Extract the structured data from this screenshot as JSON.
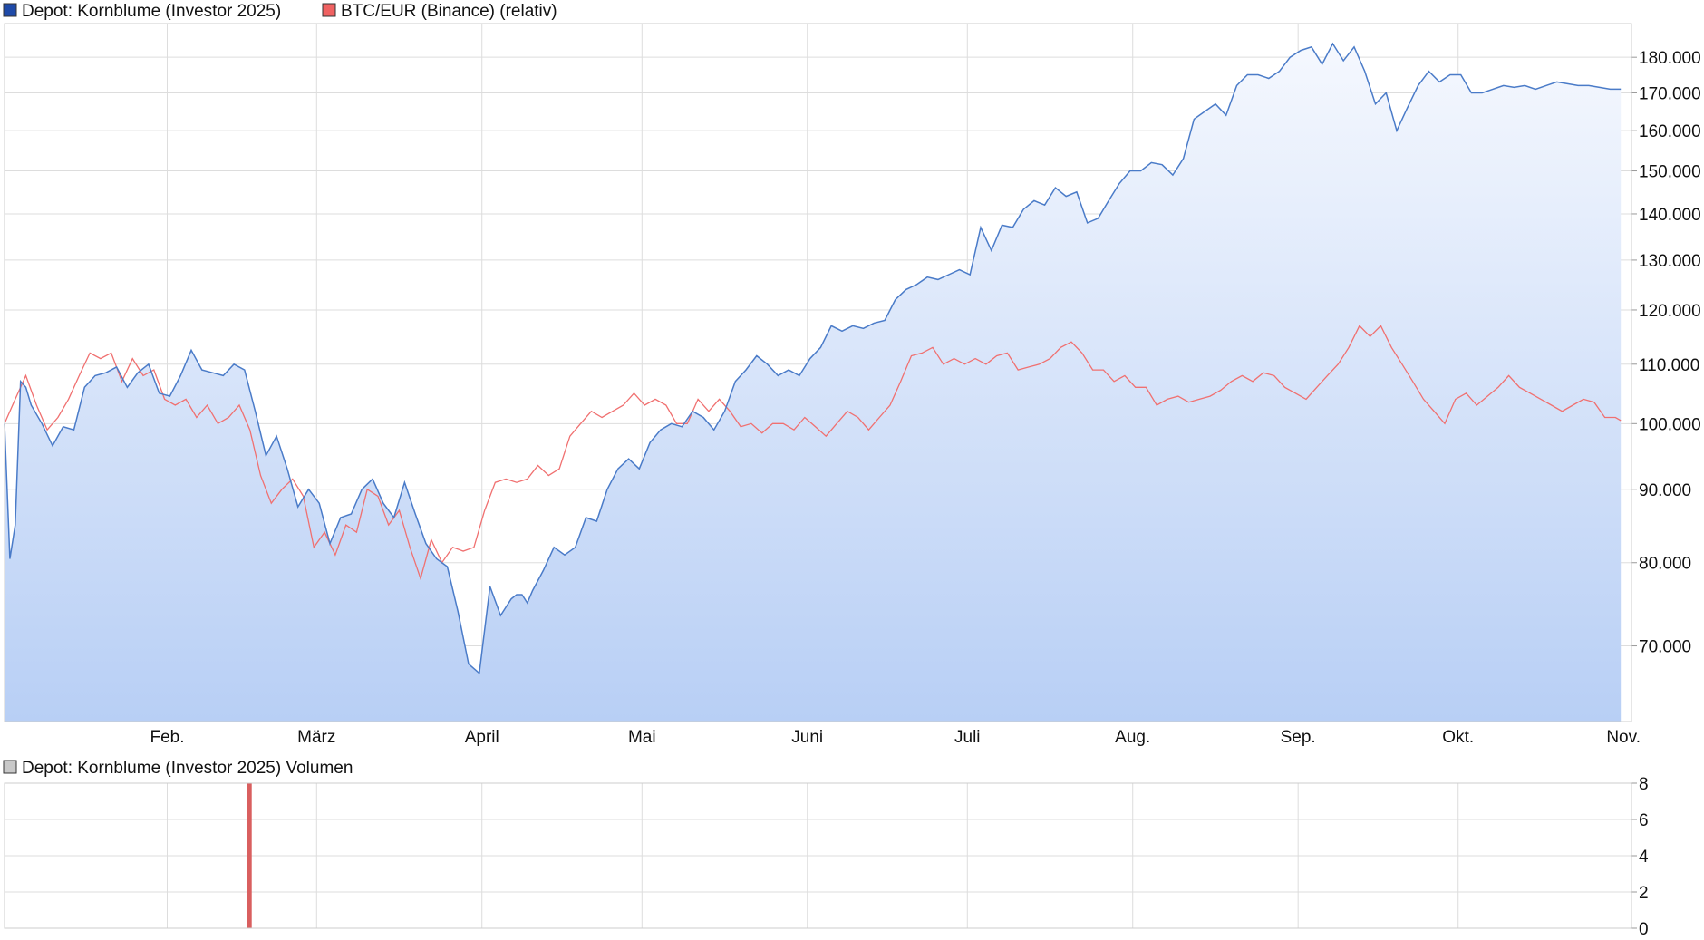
{
  "legend": {
    "series_depot": "Depot: Kornblume (Investor 2025)",
    "series_btc": "BTC/EUR (Binance) (relativ)",
    "volume_title": "Depot: Kornblume (Investor 2025) Volumen"
  },
  "colors": {
    "depot_line": "#4a7bc8",
    "depot_swatch": "#1f4aa8",
    "btc_line": "#f07070",
    "btc_swatch": "#f06262",
    "volume_bar": "#d95f5f",
    "grid": "#dddddd",
    "area_top": "#f5f8fe",
    "area_bottom": "#b8cff5"
  },
  "chart_data": [
    {
      "type": "area",
      "scale": "log",
      "ylim": [
        62000,
        190000
      ],
      "grid": true,
      "legend": "top-left",
      "y_ticks": [
        "70.000",
        "80.000",
        "90.000",
        "100.000",
        "110.000",
        "120.000",
        "130.000",
        "140.000",
        "150.000",
        "160.000",
        "170.000",
        "180.000"
      ],
      "y_tick_values": [
        70000,
        80000,
        90000,
        100000,
        110000,
        120000,
        130000,
        140000,
        150000,
        160000,
        170000,
        180000
      ],
      "x_labels": [
        "Feb.",
        "März",
        "April",
        "Mai",
        "Juni",
        "Juli",
        "Aug.",
        "Sep.",
        "Okt.",
        "Nov."
      ],
      "x_label_days": [
        30.5,
        58.5,
        89.5,
        119.5,
        150.5,
        180.5,
        211.5,
        242.5,
        272.5,
        303.5
      ],
      "series": [
        {
          "name": "Depot: Kornblume (Investor 2025)",
          "x": [
            0,
            1,
            2,
            3,
            4,
            5,
            7,
            9,
            11,
            13,
            15,
            17,
            19,
            21,
            23,
            25,
            27,
            29,
            31,
            33,
            35,
            37,
            39,
            41,
            43,
            45,
            47,
            49,
            51,
            53,
            55,
            57,
            59,
            61,
            63,
            65,
            67,
            69,
            71,
            73,
            75,
            77,
            79,
            81,
            83,
            85,
            87,
            89,
            91,
            93,
            95,
            96,
            97,
            98,
            99,
            101,
            103,
            105,
            107,
            109,
            111,
            113,
            115,
            117,
            119,
            121,
            123,
            125,
            127,
            129,
            131,
            133,
            135,
            137,
            139,
            141,
            143,
            145,
            147,
            149,
            151,
            153,
            155,
            157,
            159,
            161,
            163,
            165,
            167,
            169,
            171,
            173,
            175,
            177,
            179,
            181,
            183,
            185,
            187,
            189,
            191,
            193,
            195,
            197,
            199,
            201,
            203,
            205,
            207,
            209,
            211,
            213,
            215,
            217,
            219,
            221,
            223,
            225,
            227,
            229,
            231,
            233,
            235,
            237,
            239,
            241,
            243,
            245,
            247,
            249,
            251,
            253,
            255,
            257,
            259,
            261,
            263,
            265,
            267,
            269,
            271,
            273,
            275,
            277,
            279,
            281,
            283,
            285,
            287,
            289,
            291,
            293,
            295,
            297,
            299,
            301,
            303
          ],
          "values": [
            100000,
            80500,
            85000,
            107000,
            106000,
            103000,
            100000,
            96500,
            99500,
            99000,
            106000,
            108000,
            108500,
            109500,
            106000,
            108500,
            110000,
            105000,
            104500,
            108000,
            112500,
            109000,
            108500,
            108000,
            110000,
            109000,
            102000,
            95000,
            98000,
            93000,
            87500,
            90000,
            88000,
            82500,
            86000,
            86500,
            90000,
            91500,
            88000,
            86000,
            91000,
            86500,
            82500,
            80500,
            79500,
            74000,
            68000,
            67000,
            77000,
            73500,
            75500,
            76000,
            76000,
            75000,
            76500,
            79000,
            82000,
            81000,
            82000,
            86000,
            85500,
            90000,
            93000,
            94500,
            93000,
            97000,
            99000,
            100000,
            99500,
            102000,
            101000,
            99000,
            102000,
            107000,
            109000,
            111500,
            110000,
            108000,
            109000,
            108000,
            111000,
            113000,
            117000,
            116000,
            117000,
            116500,
            117500,
            118000,
            122000,
            124000,
            125000,
            126500,
            126000,
            127000,
            128000,
            127000,
            137000,
            132000,
            137500,
            137000,
            141000,
            143000,
            142000,
            146000,
            144000,
            145000,
            138000,
            139000,
            143000,
            147000,
            150000,
            150000,
            152000,
            151500,
            149000,
            153000,
            163000,
            165000,
            167000,
            164000,
            172000,
            175000,
            175000,
            174000,
            176000,
            180000,
            182000,
            183000,
            178000,
            184000,
            179000,
            183000,
            176000,
            167000,
            170000,
            160000,
            166000,
            172000,
            176000,
            173000,
            175000,
            175000,
            170000,
            170000,
            171000,
            172000,
            171500,
            172000,
            171000,
            172000,
            173000,
            172500,
            172000,
            172000,
            171500,
            171000,
            171000
          ]
        },
        {
          "name": "BTC/EUR (Binance) (relativ)",
          "x": [
            0,
            2,
            4,
            6,
            8,
            10,
            12,
            14,
            16,
            18,
            20,
            22,
            24,
            26,
            28,
            30,
            32,
            34,
            36,
            38,
            40,
            42,
            44,
            46,
            48,
            50,
            52,
            54,
            56,
            58,
            60,
            62,
            64,
            66,
            68,
            70,
            72,
            74,
            76,
            78,
            80,
            82,
            84,
            86,
            88,
            90,
            92,
            94,
            96,
            98,
            100,
            102,
            104,
            106,
            108,
            110,
            112,
            114,
            116,
            118,
            120,
            122,
            124,
            126,
            128,
            130,
            132,
            134,
            136,
            138,
            140,
            142,
            144,
            146,
            148,
            150,
            152,
            154,
            156,
            158,
            160,
            162,
            164,
            166,
            168,
            170,
            172,
            174,
            176,
            178,
            180,
            182,
            184,
            186,
            188,
            190,
            192,
            194,
            196,
            198,
            200,
            202,
            204,
            206,
            208,
            210,
            212,
            214,
            216,
            218,
            220,
            222,
            224,
            226,
            228,
            230,
            232,
            234,
            236,
            238,
            240,
            242,
            244,
            246,
            248,
            250,
            252,
            254,
            256,
            258,
            260,
            262,
            264,
            266,
            268,
            270,
            272,
            274,
            276,
            278,
            280,
            282,
            284,
            286,
            288,
            290,
            292,
            294,
            296,
            298,
            300,
            302,
            303
          ],
          "values": [
            100000,
            104000,
            108000,
            103000,
            99000,
            101000,
            104000,
            108000,
            112000,
            111000,
            112000,
            107000,
            111000,
            108000,
            109000,
            104000,
            103000,
            104000,
            101000,
            103000,
            100000,
            101000,
            103000,
            99000,
            92000,
            88000,
            90000,
            91500,
            89000,
            82000,
            84000,
            81000,
            85000,
            84000,
            90000,
            89000,
            85000,
            87000,
            82000,
            78000,
            83000,
            80000,
            82000,
            81500,
            82000,
            87000,
            91000,
            91500,
            91000,
            91500,
            93500,
            92000,
            93000,
            98000,
            100000,
            102000,
            101000,
            102000,
            103000,
            105000,
            103000,
            104000,
            103000,
            100000,
            100000,
            104000,
            102000,
            104000,
            102000,
            99500,
            100000,
            98500,
            100000,
            100000,
            99000,
            101000,
            99500,
            98000,
            100000,
            102000,
            101000,
            99000,
            101000,
            103000,
            107000,
            111500,
            112000,
            113000,
            110000,
            111000,
            110000,
            111000,
            110000,
            111500,
            112000,
            109000,
            109500,
            110000,
            111000,
            113000,
            114000,
            112000,
            109000,
            109000,
            107000,
            108000,
            106000,
            106000,
            103000,
            104000,
            104500,
            103500,
            104000,
            104500,
            105500,
            107000,
            108000,
            107000,
            108500,
            108000,
            106000,
            105000,
            104000,
            106000,
            108000,
            110000,
            113000,
            117000,
            115000,
            117000,
            113000,
            110000,
            107000,
            104000,
            102000,
            100000,
            104000,
            105000,
            103000,
            104500,
            106000,
            108000,
            106000,
            105000,
            104000,
            103000,
            102000,
            103000,
            104000,
            103500,
            101000,
            101000,
            100500
          ]
        }
      ]
    },
    {
      "type": "bar",
      "ylim": [
        0,
        8
      ],
      "grid": true,
      "y_ticks": [
        "0",
        "2",
        "4",
        "6",
        "8"
      ],
      "y_tick_values": [
        0,
        2,
        4,
        6,
        8
      ],
      "series": [
        {
          "name": "Depot: Kornblume (Investor 2025) Volumen",
          "x": [
            46
          ],
          "values": [
            8
          ]
        }
      ]
    }
  ]
}
